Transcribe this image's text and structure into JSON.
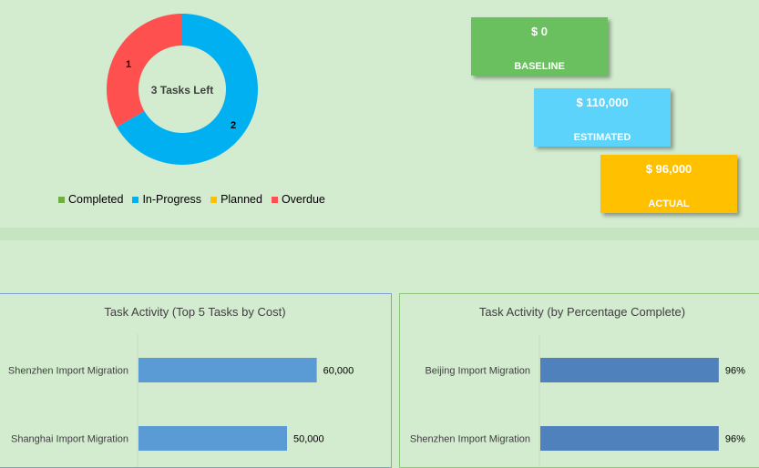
{
  "donut": {
    "center_label": "3 Tasks Left",
    "slice_labels": [
      "1",
      "2"
    ]
  },
  "legend": [
    {
      "label": "Completed",
      "color": "#70ad47"
    },
    {
      "label": "In-Progress",
      "color": "#00b0f0"
    },
    {
      "label": "Planned",
      "color": "#ffc000"
    },
    {
      "label": "Overdue",
      "color": "#ff5050"
    }
  ],
  "kpis": {
    "baseline": {
      "value": "$ 0",
      "label": "BASELINE",
      "color": "#6abf5e"
    },
    "estimated": {
      "value": "$ 110,000",
      "label": "ESTIMATED",
      "color": "#5bd3fb"
    },
    "actual": {
      "value": "$ 96,000",
      "label": "ACTUAL",
      "color": "#ffc000"
    }
  },
  "chart_data": [
    {
      "type": "pie",
      "categories": [
        "Completed",
        "In-Progress",
        "Planned",
        "Overdue"
      ],
      "values": [
        0,
        2,
        0,
        1
      ],
      "colors": [
        "#70ad47",
        "#00b0f0",
        "#ffc000",
        "#ff5050"
      ],
      "title": "3 Tasks Left",
      "legend": "bottom"
    },
    {
      "type": "bar",
      "orientation": "horizontal",
      "title": "Task Activity (Top 5 Tasks by Cost)",
      "categories": [
        "Shenzhen Import Migration",
        "Shanghai Import Migration"
      ],
      "values": [
        60000,
        50000
      ],
      "data_labels": [
        "60,000",
        "50,000"
      ],
      "color": "#5b9bd5",
      "xlim": [
        0,
        100000
      ]
    },
    {
      "type": "bar",
      "orientation": "horizontal",
      "title": "Task Activity (by Percentage Complete)",
      "categories": [
        "Beijing Import Migration",
        "Shenzhen Import Migration"
      ],
      "values": [
        96,
        96
      ],
      "data_labels": [
        "96%",
        "96%"
      ],
      "color": "#4f81bd",
      "xlim": [
        0,
        100
      ]
    }
  ]
}
